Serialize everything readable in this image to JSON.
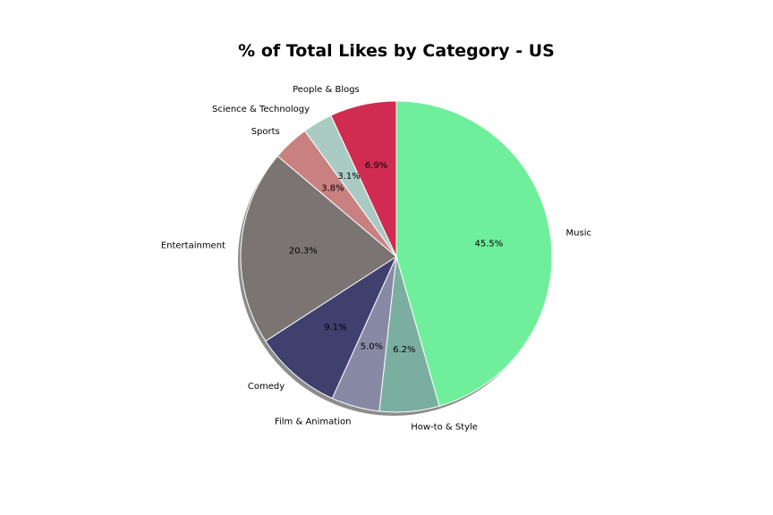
{
  "chart_data": {
    "type": "pie",
    "title": "% of Total Likes by Category - US",
    "start_angle_deg": 90,
    "direction": "clockwise",
    "shadow": true,
    "slices": [
      {
        "label": "Music",
        "value": 45.5,
        "pct_label": "45.5%",
        "color": "#6fef9b"
      },
      {
        "label": "How-to & Style",
        "value": 6.2,
        "pct_label": "6.2%",
        "color": "#7aaea0"
      },
      {
        "label": "Film & Animation",
        "value": 5.0,
        "pct_label": "5.0%",
        "color": "#8889a4"
      },
      {
        "label": "Comedy",
        "value": 9.1,
        "pct_label": "9.1%",
        "color": "#40406e"
      },
      {
        "label": "Entertainment",
        "value": 20.3,
        "pct_label": "20.3%",
        "color": "#7a7572"
      },
      {
        "label": "Sports",
        "value": 3.8,
        "pct_label": "3.8%",
        "color": "#c88080"
      },
      {
        "label": "Science & Technology",
        "value": 3.1,
        "pct_label": "3.1%",
        "color": "#aacbc3"
      },
      {
        "label": "People & Blogs",
        "value": 6.9,
        "pct_label": "6.9%",
        "color": "#d02b50"
      }
    ]
  }
}
